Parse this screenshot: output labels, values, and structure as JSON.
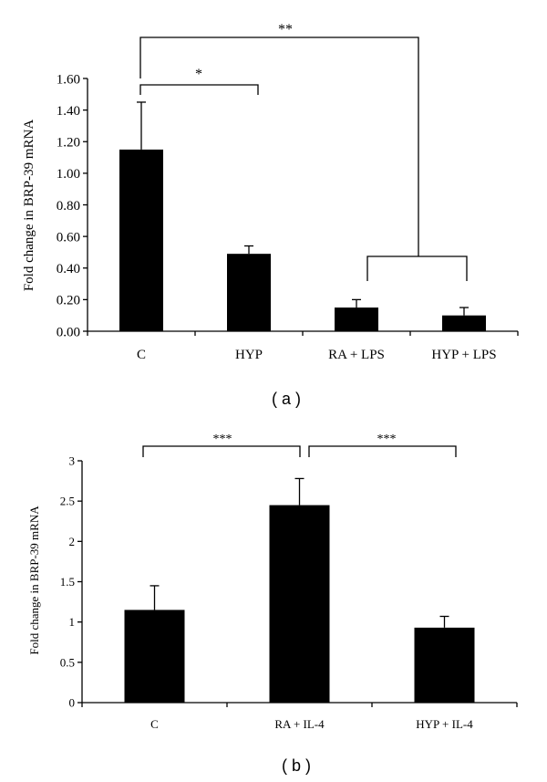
{
  "chart_data": [
    {
      "type": "bar",
      "panel_label": "( a )",
      "ylabel": "Fold change in BRP-39 mRNA",
      "xlabel": "",
      "categories": [
        "C",
        "HYP",
        "RA + LPS",
        "HYP + LPS"
      ],
      "values": [
        1.15,
        0.49,
        0.15,
        0.1
      ],
      "errors": [
        0.3,
        0.05,
        0.05,
        0.05
      ],
      "ylim": [
        0,
        1.6
      ],
      "yticks": [
        "0.00",
        "0.20",
        "0.40",
        "0.60",
        "0.80",
        "1.00",
        "1.20",
        "1.40",
        "1.60"
      ],
      "bar_color": "#000000",
      "grid": false,
      "significance": [
        {
          "label": "*"
        },
        {
          "label": "**"
        }
      ]
    },
    {
      "type": "bar",
      "panel_label": "( b )",
      "ylabel": "Fold change in BRP-39 mRNA",
      "xlabel": "",
      "categories": [
        "C",
        "RA + IL-4",
        "HYP + IL-4"
      ],
      "values": [
        1.15,
        2.45,
        0.93
      ],
      "errors": [
        0.3,
        0.33,
        0.14
      ],
      "ylim": [
        0,
        3
      ],
      "yticks": [
        "0",
        "0.5",
        "1",
        "1.5",
        "2",
        "2.5",
        "3"
      ],
      "bar_color": "#000000",
      "grid": false,
      "significance": [
        {
          "label": "***"
        },
        {
          "label": "***"
        }
      ]
    }
  ]
}
